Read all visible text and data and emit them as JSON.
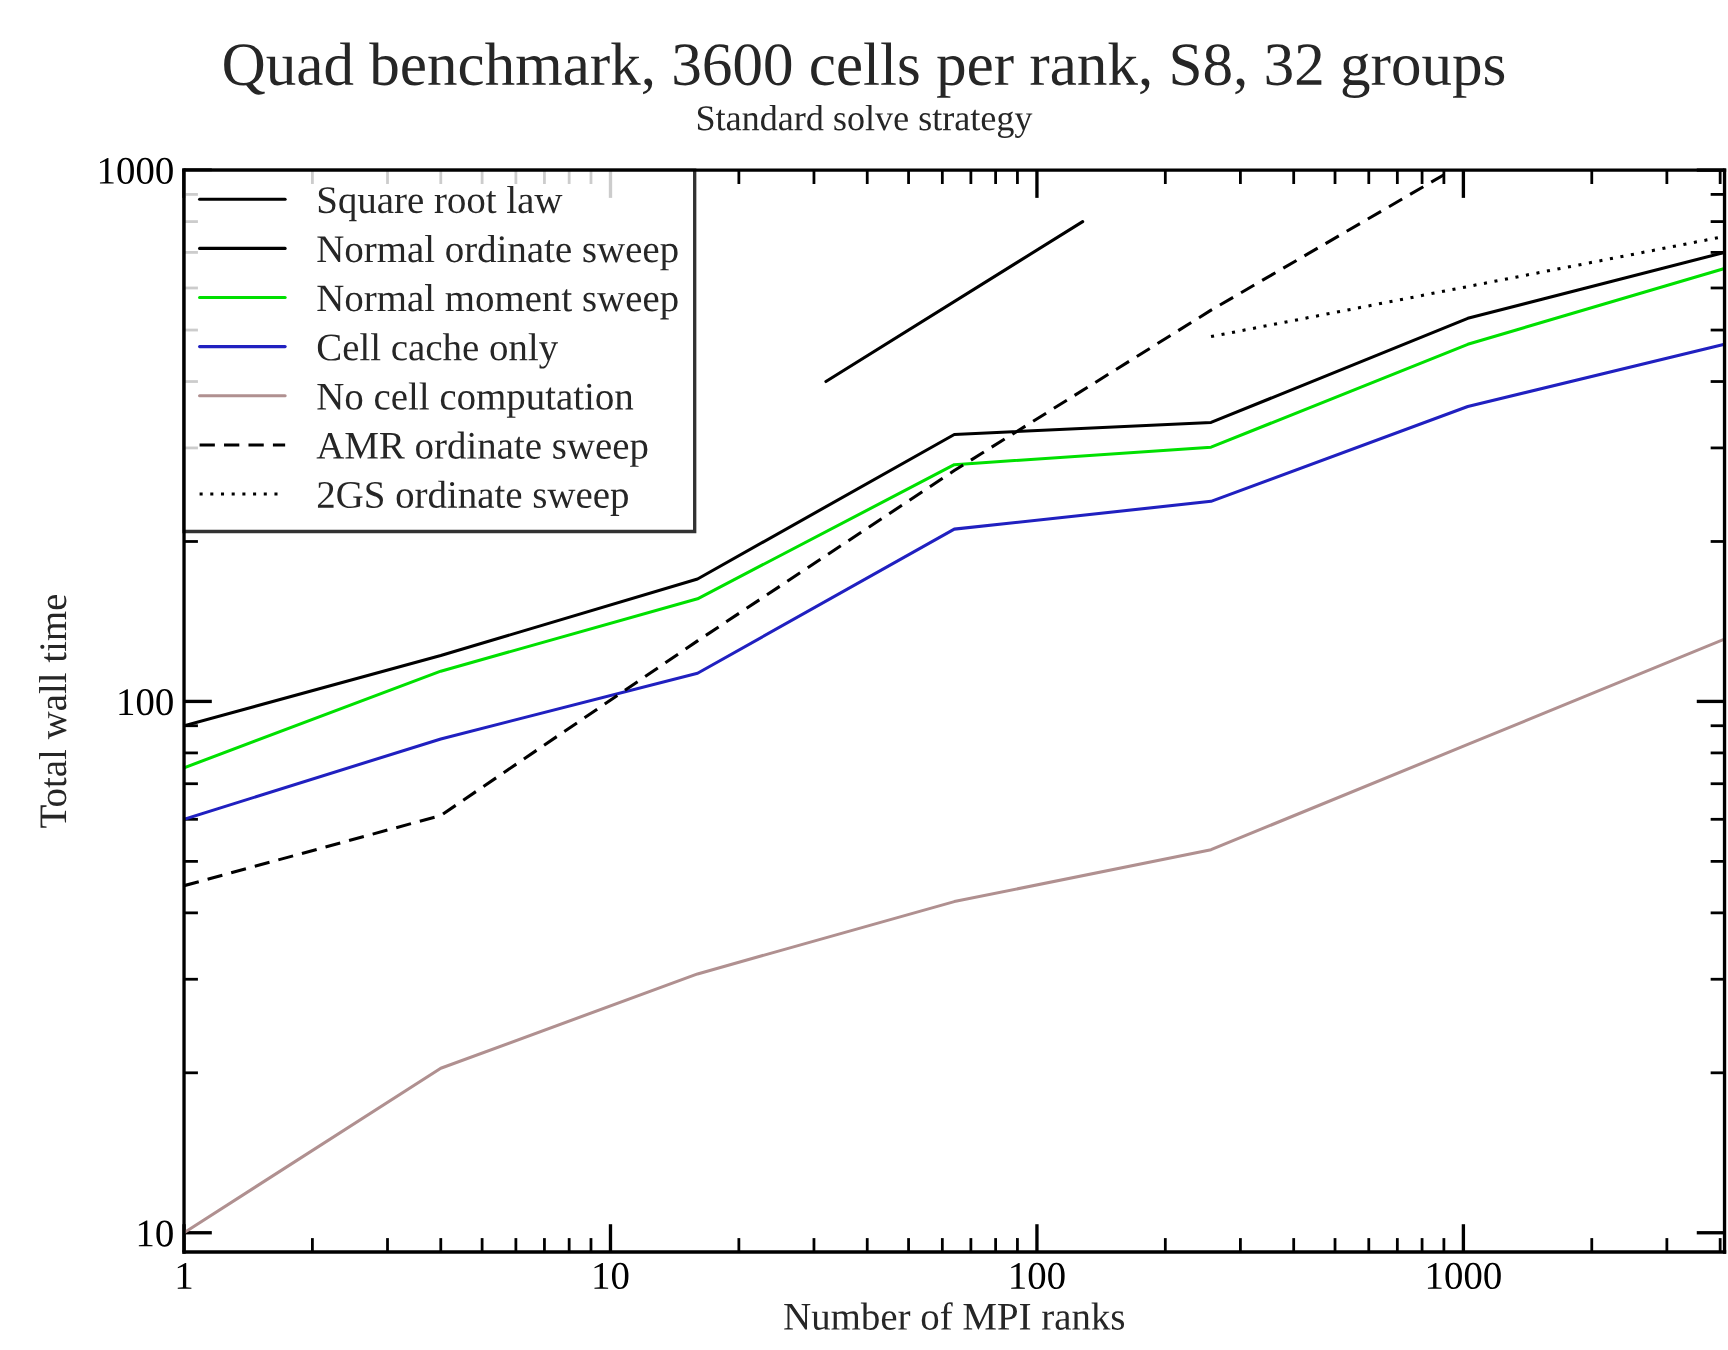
{
  "chart_data": {
    "type": "line",
    "title": "Quad benchmark, 3600 cells per rank, S8, 32 groups",
    "subtitle": "Standard solve strategy",
    "xlabel": "Number of MPI ranks",
    "ylabel": "Total wall time",
    "log": "xy",
    "grid": false,
    "legend": "top left",
    "marker": "none",
    "x": [
      1,
      4,
      16,
      64,
      256,
      1024,
      4096
    ],
    "xlim": [
      1,
      4096
    ],
    "xticks": [
      1,
      10,
      100,
      1000
    ],
    "ylim": [
      9.2,
      1000
    ],
    "yticks": [
      10,
      100,
      1000
    ],
    "series": [
      {
        "name": "Square root law",
        "color": "#000000",
        "line_style": "solid",
        "x": [
          32,
          128
        ],
        "values": [
          400,
          800
        ]
      },
      {
        "name": "Normal ordinate sweep",
        "color": "#000000",
        "line_style": "solid",
        "values": [
          90,
          122,
          170,
          318,
          335,
          526,
          700
        ]
      },
      {
        "name": "Normal moment sweep",
        "color": "#00e000",
        "line_style": "solid",
        "values": [
          75,
          114,
          156,
          279,
          301,
          470,
          653
        ]
      },
      {
        "name": "Cell cache only",
        "color": "#2020c0",
        "line_style": "solid",
        "values": [
          60,
          85,
          113,
          211,
          238,
          359,
          470
        ]
      },
      {
        "name": "No cell computation",
        "color": "#b09090",
        "line_style": "solid",
        "values": [
          10,
          20.4,
          30.7,
          42,
          52.6,
          83,
          131
        ]
      },
      {
        "name": "AMR ordinate sweep",
        "color": "#000000",
        "line_style": "dashed",
        "x": [
          1,
          4,
          16,
          64,
          256,
          940
        ],
        "values": [
          45,
          61,
          130,
          272,
          545,
          1000
        ]
      },
      {
        "name": "2GS ordinate sweep",
        "color": "#000000",
        "line_style": "dotted",
        "x": [
          256,
          4096
        ],
        "values": [
          486,
          750
        ]
      }
    ]
  }
}
